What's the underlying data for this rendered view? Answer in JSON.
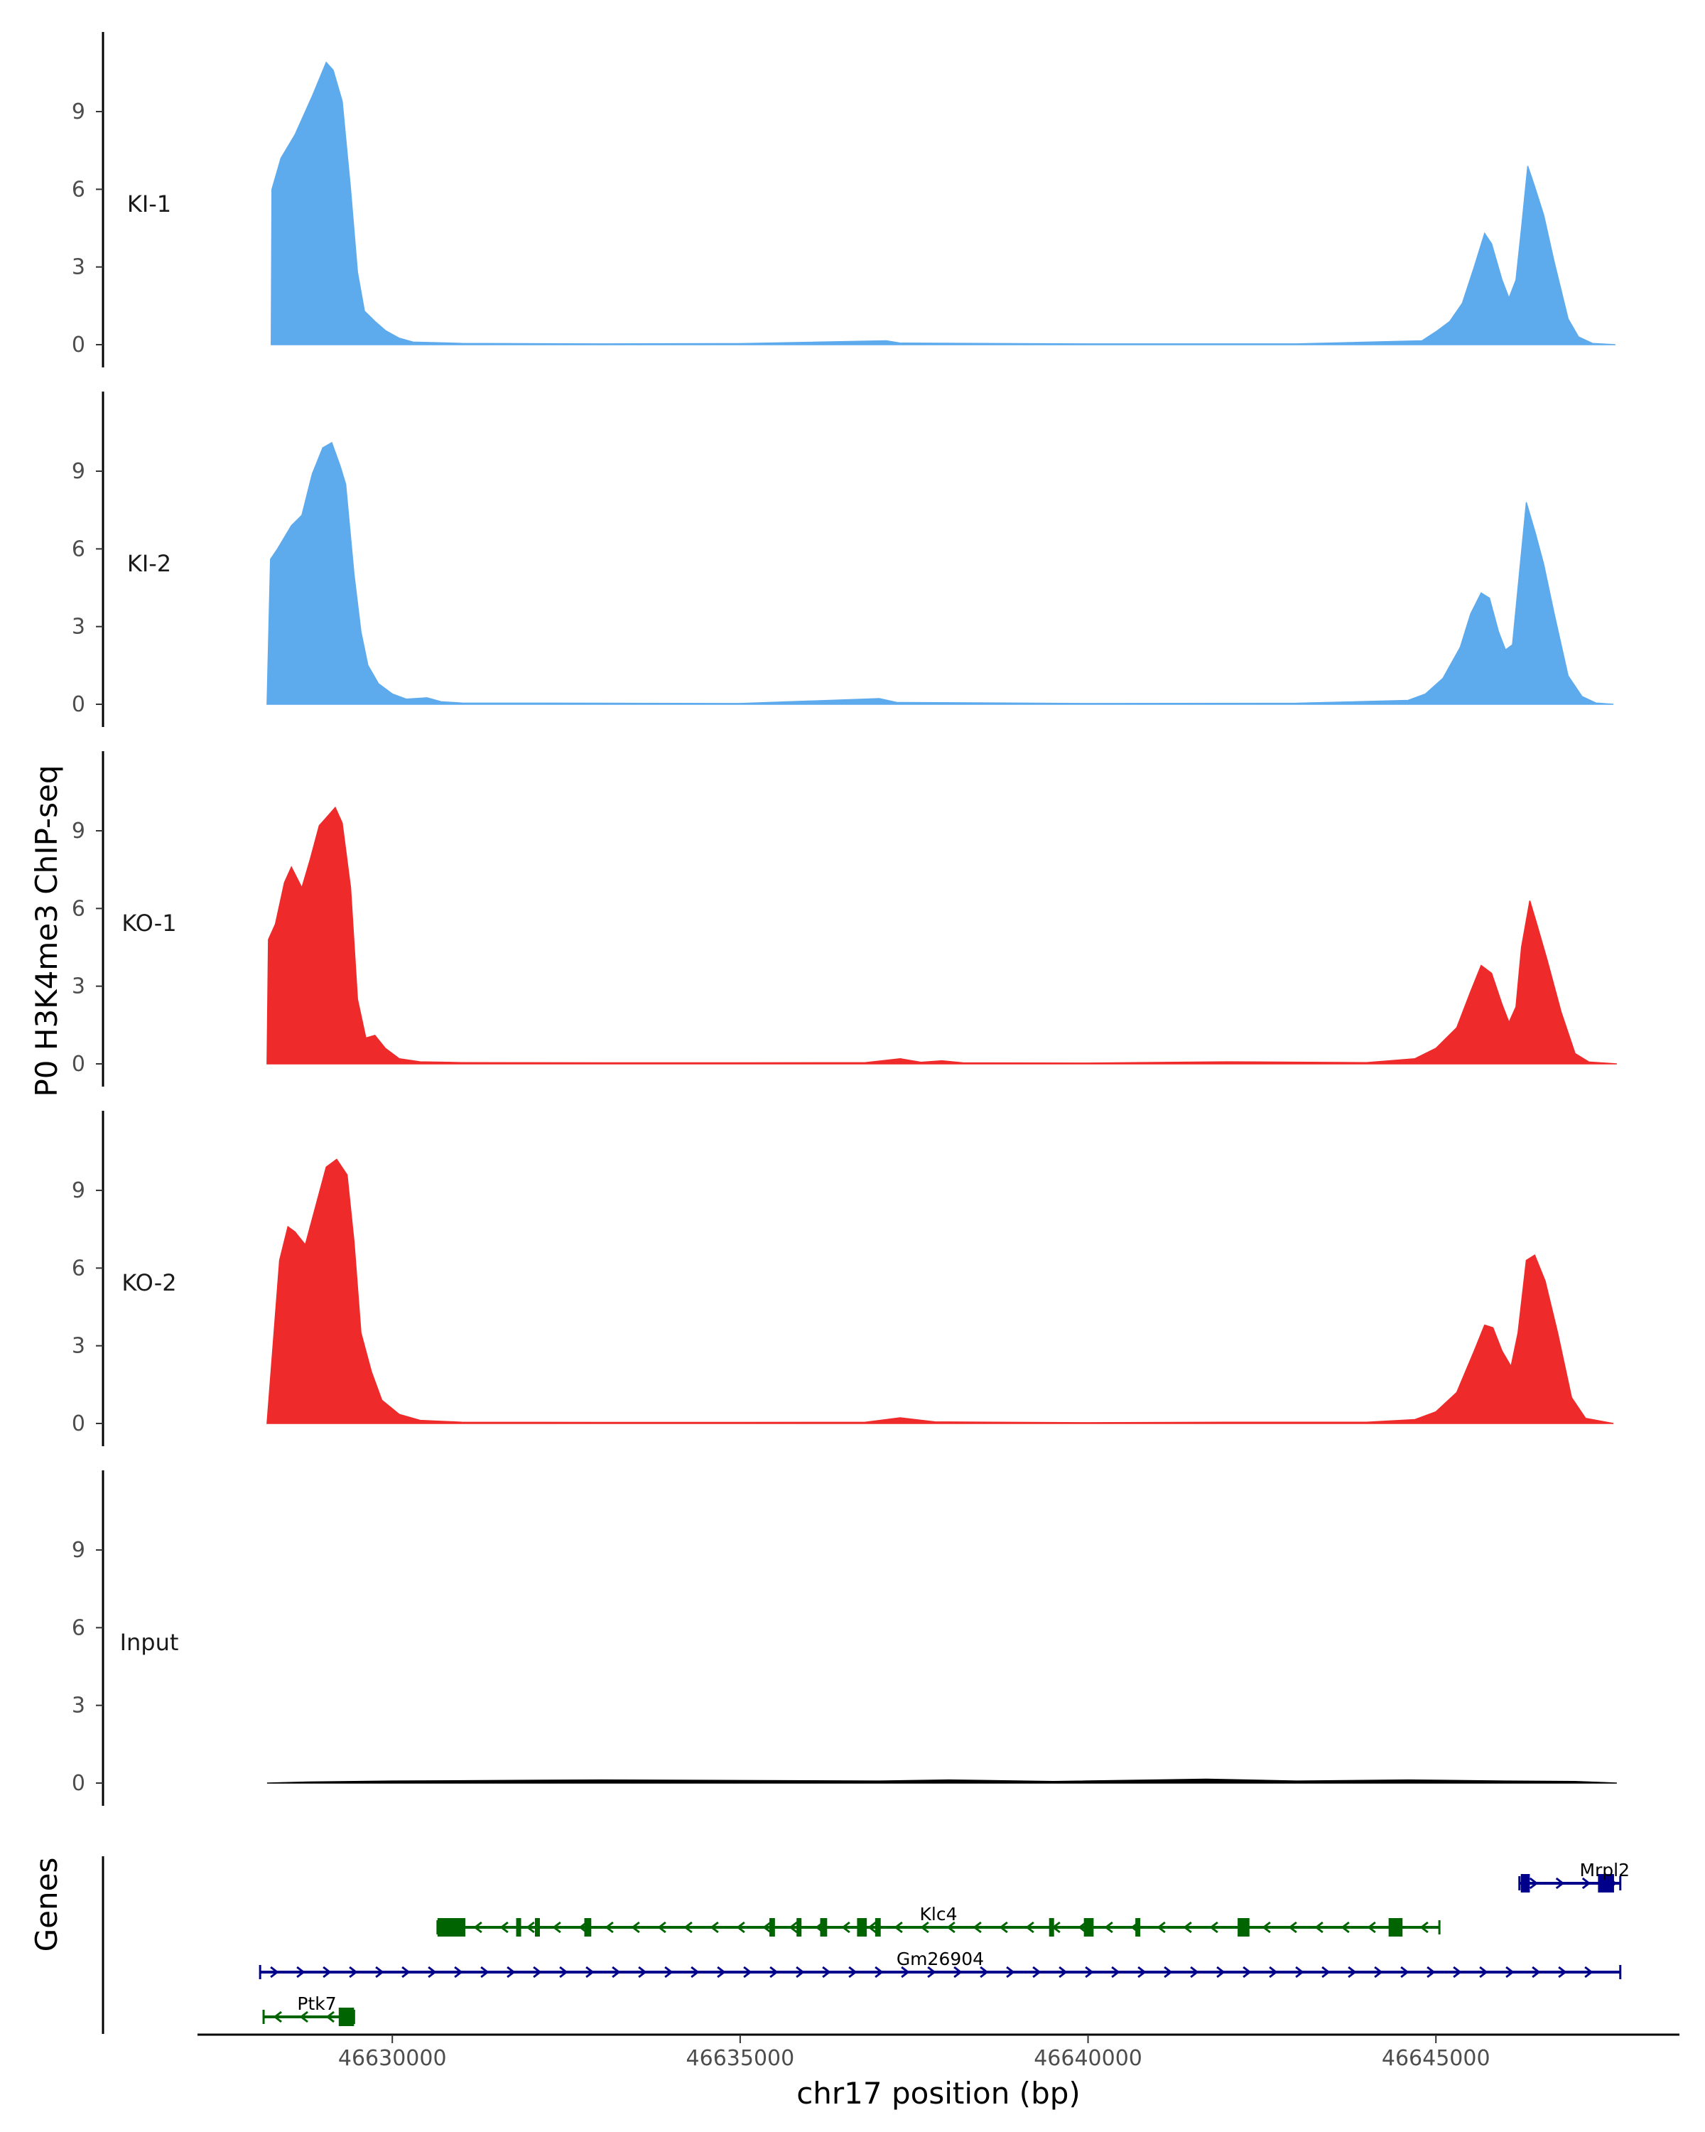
{
  "chart_data": {
    "type": "area",
    "y_title": "P0 H3K4me3 ChIP-seq",
    "x_title": "chr17 position (bp)",
    "genes_title": "Genes",
    "x_range": [
      46627200,
      46648500
    ],
    "x_ticks": [
      46630000,
      46635000,
      46640000,
      46645000
    ],
    "x_tick_labels": [
      "46630000",
      "46635000",
      "46640000",
      "46645000"
    ],
    "y_range": [
      0,
      11.8
    ],
    "y_ticks": [
      0,
      3,
      6,
      9
    ],
    "y_tick_labels": [
      "0",
      "3",
      "6",
      "9"
    ],
    "tracks": [
      {
        "label": "KI-1",
        "color": "#5daaed",
        "points": [
          [
            46628260,
            0
          ],
          [
            46628270,
            6.0
          ],
          [
            46628400,
            7.2
          ],
          [
            46628600,
            8.1
          ],
          [
            46628850,
            9.6
          ],
          [
            46629050,
            10.9
          ],
          [
            46629150,
            10.6
          ],
          [
            46629280,
            9.4
          ],
          [
            46629400,
            6.0
          ],
          [
            46629500,
            2.8
          ],
          [
            46629600,
            1.3
          ],
          [
            46629750,
            0.9
          ],
          [
            46629900,
            0.55
          ],
          [
            46630100,
            0.25
          ],
          [
            46630300,
            0.1
          ],
          [
            46630600,
            0.08
          ],
          [
            46631000,
            0.05
          ],
          [
            46633000,
            0.03
          ],
          [
            46635000,
            0.04
          ],
          [
            46637100,
            0.15
          ],
          [
            46637300,
            0.06
          ],
          [
            46640000,
            0.03
          ],
          [
            46643000,
            0.03
          ],
          [
            46644800,
            0.15
          ],
          [
            46645000,
            0.5
          ],
          [
            46645200,
            0.9
          ],
          [
            46645380,
            1.6
          ],
          [
            46645550,
            3.0
          ],
          [
            46645700,
            4.3
          ],
          [
            46645800,
            3.9
          ],
          [
            46645950,
            2.5
          ],
          [
            46646050,
            1.8
          ],
          [
            46646150,
            2.5
          ],
          [
            46646230,
            4.5
          ],
          [
            46646320,
            6.9
          ],
          [
            46646420,
            6.1
          ],
          [
            46646550,
            5.0
          ],
          [
            46646700,
            3.2
          ],
          [
            46646900,
            1.0
          ],
          [
            46647050,
            0.3
          ],
          [
            46647250,
            0.05
          ],
          [
            46647580,
            0
          ]
        ]
      },
      {
        "label": "KI-2",
        "color": "#5daaed",
        "points": [
          [
            46628200,
            0
          ],
          [
            46628250,
            5.6
          ],
          [
            46628350,
            6.0
          ],
          [
            46628550,
            6.9
          ],
          [
            46628700,
            7.3
          ],
          [
            46628850,
            8.9
          ],
          [
            46629000,
            9.9
          ],
          [
            46629130,
            10.1
          ],
          [
            46629250,
            9.2
          ],
          [
            46629330,
            8.5
          ],
          [
            46629450,
            5.0
          ],
          [
            46629550,
            2.8
          ],
          [
            46629650,
            1.5
          ],
          [
            46629800,
            0.8
          ],
          [
            46630000,
            0.4
          ],
          [
            46630200,
            0.2
          ],
          [
            46630500,
            0.25
          ],
          [
            46630700,
            0.1
          ],
          [
            46631000,
            0.05
          ],
          [
            46633000,
            0.04
          ],
          [
            46635000,
            0.03
          ],
          [
            46637000,
            0.22
          ],
          [
            46637250,
            0.07
          ],
          [
            46640000,
            0.03
          ],
          [
            46643000,
            0.04
          ],
          [
            46644600,
            0.15
          ],
          [
            46644850,
            0.4
          ],
          [
            46645100,
            1.0
          ],
          [
            46645350,
            2.2
          ],
          [
            46645500,
            3.5
          ],
          [
            46645650,
            4.3
          ],
          [
            46645770,
            4.1
          ],
          [
            46645900,
            2.8
          ],
          [
            46646000,
            2.1
          ],
          [
            46646100,
            2.3
          ],
          [
            46646180,
            4.5
          ],
          [
            46646300,
            7.8
          ],
          [
            46646430,
            6.6
          ],
          [
            46646550,
            5.4
          ],
          [
            46646700,
            3.5
          ],
          [
            46646900,
            1.1
          ],
          [
            46647100,
            0.3
          ],
          [
            46647300,
            0.05
          ],
          [
            46647550,
            0
          ]
        ]
      },
      {
        "label": "KO-1",
        "color": "#ee2a2a",
        "points": [
          [
            46628200,
            0
          ],
          [
            46628220,
            4.8
          ],
          [
            46628320,
            5.4
          ],
          [
            46628450,
            7.0
          ],
          [
            46628550,
            7.6
          ],
          [
            46628700,
            6.8
          ],
          [
            46628820,
            7.9
          ],
          [
            46628950,
            9.2
          ],
          [
            46629050,
            9.5
          ],
          [
            46629180,
            9.9
          ],
          [
            46629280,
            9.3
          ],
          [
            46629400,
            6.8
          ],
          [
            46629500,
            2.5
          ],
          [
            46629620,
            1.0
          ],
          [
            46629750,
            1.1
          ],
          [
            46629900,
            0.6
          ],
          [
            46630100,
            0.2
          ],
          [
            46630400,
            0.08
          ],
          [
            46631000,
            0.05
          ],
          [
            46633000,
            0.04
          ],
          [
            46635000,
            0.04
          ],
          [
            46636800,
            0.05
          ],
          [
            46637300,
            0.2
          ],
          [
            46637600,
            0.06
          ],
          [
            46637900,
            0.12
          ],
          [
            46638200,
            0.04
          ],
          [
            46640000,
            0.03
          ],
          [
            46642000,
            0.08
          ],
          [
            46644000,
            0.05
          ],
          [
            46644700,
            0.2
          ],
          [
            46645000,
            0.6
          ],
          [
            46645300,
            1.4
          ],
          [
            46645500,
            2.8
          ],
          [
            46645650,
            3.8
          ],
          [
            46645800,
            3.5
          ],
          [
            46645950,
            2.3
          ],
          [
            46646050,
            1.6
          ],
          [
            46646150,
            2.2
          ],
          [
            46646230,
            4.5
          ],
          [
            46646350,
            6.3
          ],
          [
            46646450,
            5.4
          ],
          [
            46646600,
            4.0
          ],
          [
            46646800,
            2.0
          ],
          [
            46647000,
            0.4
          ],
          [
            46647200,
            0.07
          ],
          [
            46647600,
            0
          ]
        ]
      },
      {
        "label": "KO-2",
        "color": "#ee2a2a",
        "points": [
          [
            46628200,
            0
          ],
          [
            46628380,
            6.3
          ],
          [
            46628500,
            7.6
          ],
          [
            46628600,
            7.4
          ],
          [
            46628750,
            6.9
          ],
          [
            46628900,
            8.4
          ],
          [
            46629050,
            9.9
          ],
          [
            46629200,
            10.2
          ],
          [
            46629350,
            9.6
          ],
          [
            46629450,
            7.0
          ],
          [
            46629550,
            3.5
          ],
          [
            46629700,
            2.0
          ],
          [
            46629850,
            0.9
          ],
          [
            46630100,
            0.35
          ],
          [
            46630400,
            0.12
          ],
          [
            46631000,
            0.05
          ],
          [
            46633000,
            0.04
          ],
          [
            46635000,
            0.04
          ],
          [
            46636800,
            0.05
          ],
          [
            46637300,
            0.22
          ],
          [
            46637800,
            0.06
          ],
          [
            46640000,
            0.03
          ],
          [
            46642000,
            0.05
          ],
          [
            46644000,
            0.05
          ],
          [
            46644700,
            0.15
          ],
          [
            46645000,
            0.45
          ],
          [
            46645300,
            1.2
          ],
          [
            46645550,
            2.8
          ],
          [
            46645700,
            3.8
          ],
          [
            46645820,
            3.7
          ],
          [
            46645950,
            2.8
          ],
          [
            46646080,
            2.2
          ],
          [
            46646180,
            3.5
          ],
          [
            46646300,
            6.3
          ],
          [
            46646420,
            6.5
          ],
          [
            46646570,
            5.5
          ],
          [
            46646750,
            3.5
          ],
          [
            46646950,
            1.0
          ],
          [
            46647150,
            0.2
          ],
          [
            46647550,
            0
          ]
        ]
      },
      {
        "label": "Input",
        "color": "#000000",
        "points": [
          [
            46628200,
            0
          ],
          [
            46628800,
            0.04
          ],
          [
            46630000,
            0.08
          ],
          [
            46631500,
            0.1
          ],
          [
            46633000,
            0.12
          ],
          [
            46635000,
            0.1
          ],
          [
            46637000,
            0.08
          ],
          [
            46638000,
            0.12
          ],
          [
            46639500,
            0.06
          ],
          [
            46641700,
            0.15
          ],
          [
            46643000,
            0.08
          ],
          [
            46644600,
            0.12
          ],
          [
            46646000,
            0.08
          ],
          [
            46647000,
            0.06
          ],
          [
            46647600,
            0
          ]
        ]
      }
    ],
    "genes": [
      {
        "name": "Mrpl2",
        "color": "#00008b",
        "strand": "+",
        "start": 46646200,
        "end": 46647650,
        "row": 1,
        "exons": [
          [
            46646220,
            46646350
          ],
          [
            46647330,
            46647560
          ]
        ]
      },
      {
        "name": "Klc4",
        "color": "#006400",
        "strand": "-",
        "start": 46630650,
        "end": 46645050,
        "row": 2,
        "exons": [
          [
            46630650,
            46631050
          ],
          [
            46631780,
            46631830
          ],
          [
            46632050,
            46632120
          ],
          [
            46632760,
            46632860
          ],
          [
            46635420,
            46635500
          ],
          [
            46635810,
            46635860
          ],
          [
            46636150,
            46636250
          ],
          [
            46636680,
            46636820
          ],
          [
            46636940,
            46637020
          ],
          [
            46639440,
            46639500
          ],
          [
            46639940,
            46640080
          ],
          [
            46640680,
            46640750
          ],
          [
            46642150,
            46642320
          ],
          [
            46644320,
            46644520
          ]
        ]
      },
      {
        "name": "Gm26904",
        "color": "#00008b",
        "strand": "+",
        "start": 46628100,
        "end": 46647650,
        "row": 3,
        "exons": []
      },
      {
        "name": "Ptk7",
        "color": "#006400",
        "strand": "-",
        "start": 46628150,
        "end": 46629450,
        "row": 4,
        "exons": [
          [
            46629230,
            46629450
          ]
        ]
      }
    ]
  }
}
